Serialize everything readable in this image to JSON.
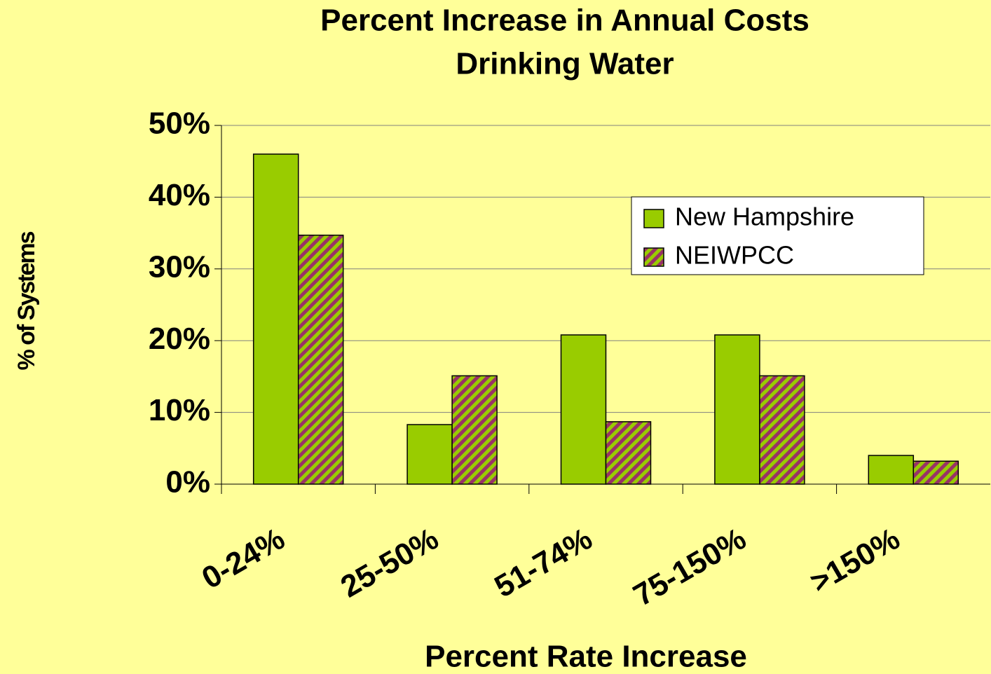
{
  "chart_data": {
    "type": "bar",
    "title": [
      "Percent Increase in Annual Costs",
      "Drinking Water"
    ],
    "x_label": "Percent Rate Increase",
    "y_label": "% of Systems",
    "categories": [
      "0-24%",
      "25-50%",
      "51-74%",
      "75-150%",
      ">150%"
    ],
    "series": [
      {
        "name": "New Hampshire",
        "color": "#99cc00",
        "values": [
          46,
          8.3,
          20.8,
          20.8,
          4.0
        ]
      },
      {
        "name": "NEIWPCC",
        "color": "#993366",
        "hatch_color": "#99cc00",
        "values": [
          34.7,
          15.1,
          8.7,
          15.1,
          3.2
        ]
      }
    ],
    "ylim": [
      0,
      50
    ],
    "yticks": [
      {
        "value": 0,
        "label": "0%"
      },
      {
        "value": 10,
        "label": "10%"
      },
      {
        "value": 20,
        "label": "20%"
      },
      {
        "value": 30,
        "label": "30%"
      },
      {
        "value": 40,
        "label": "40%"
      },
      {
        "value": 50,
        "label": "50%"
      }
    ],
    "grid": true,
    "legend": "upper right",
    "background": "#ffff99"
  }
}
